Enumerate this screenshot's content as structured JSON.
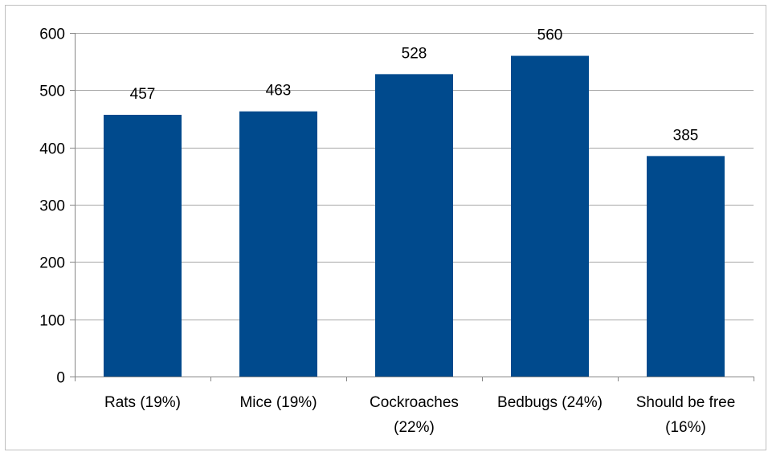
{
  "chart_data": {
    "type": "bar",
    "title": "",
    "xlabel": "",
    "ylabel": "",
    "categories": [
      [
        "Rats (19%)"
      ],
      [
        "Mice (19%)"
      ],
      [
        "Cockroaches",
        "(22%)"
      ],
      [
        "Bedbugs (24%)"
      ],
      [
        "Should be free",
        "(16%)"
      ]
    ],
    "values": [
      457,
      463,
      528,
      560,
      385
    ],
    "ylim": [
      0,
      600
    ],
    "yticks": [
      0,
      100,
      200,
      300,
      400,
      500,
      600
    ],
    "grid": true,
    "legend": "none",
    "data_labels": true,
    "bar_color": "#004a8d",
    "grid_color": "#a6a6a6"
  }
}
